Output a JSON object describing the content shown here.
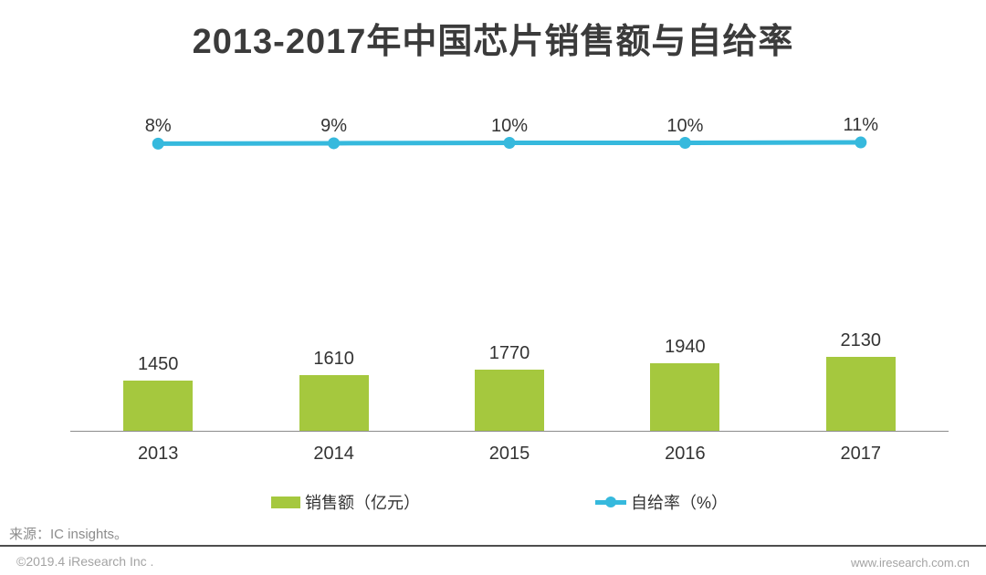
{
  "title": "2013-2017年中国芯片销售额与自给率",
  "chart_data": {
    "type": "bar",
    "title": "2013-2017年中国芯片销售额与自给率",
    "categories": [
      "2013",
      "2014",
      "2015",
      "2016",
      "2017"
    ],
    "series": [
      {
        "name": "销售额（亿元）",
        "type": "bar",
        "values": [
          1450,
          1610,
          1770,
          1940,
          2130
        ],
        "data_labels": [
          "1450",
          "1610",
          "1770",
          "1940",
          "2130"
        ],
        "color": "#a5c83e"
      },
      {
        "name": "自给率（%）",
        "type": "line",
        "values": [
          8,
          9,
          10,
          10,
          11
        ],
        "data_labels": [
          "8%",
          "9%",
          "10%",
          "10%",
          "11%"
        ],
        "color": "#36b9dd"
      }
    ],
    "xlabel": "",
    "ylabel": "",
    "grid": false,
    "y_axis_visible": false,
    "legend_position": "bottom"
  },
  "legend": {
    "bar_label": "销售额（亿元）",
    "line_label": "自给率（%）"
  },
  "source_note": "来源：IC insights。",
  "footer": {
    "left": "©2019.4 iResearch Inc .",
    "right": "www.iresearch.com.cn"
  },
  "colors": {
    "bar": "#a5c83e",
    "line": "#36b9dd",
    "title_text": "#3b3b3b",
    "label_text": "#333333",
    "muted_text": "#a3a3a3",
    "source_text": "#8c8c8c",
    "axis_line": "#8c8c8c",
    "divider": "#4d4d4d"
  }
}
